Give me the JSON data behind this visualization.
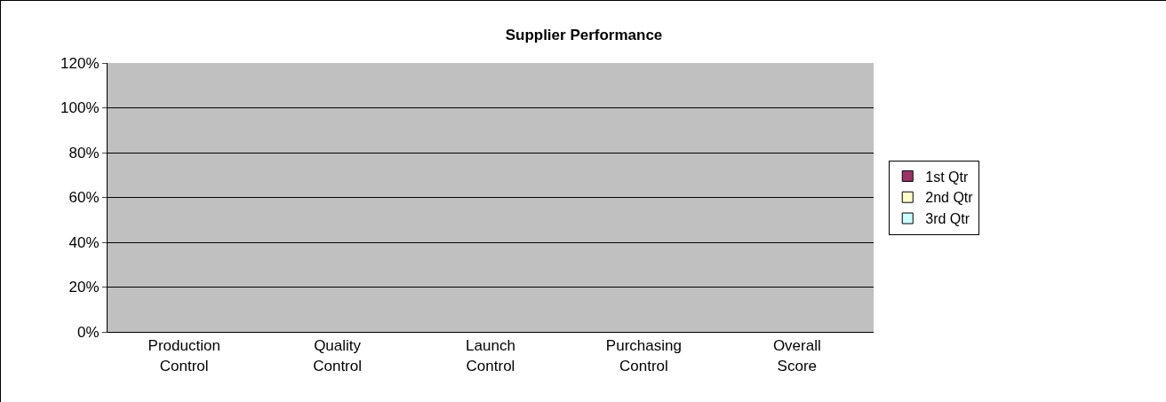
{
  "chart_data": {
    "type": "bar",
    "title": "Supplier Performance",
    "categories": [
      "Production Control",
      "Quality Control",
      "Launch Control",
      "Purchasing Control",
      "Overall Score"
    ],
    "series": [
      {
        "name": "1st Qtr",
        "color": "#993366",
        "values": [
          null,
          null,
          null,
          null,
          null
        ]
      },
      {
        "name": "2nd Qtr",
        "color": "#ffffcc",
        "values": [
          null,
          null,
          null,
          null,
          null
        ]
      },
      {
        "name": "3rd Qtr",
        "color": "#ccffff",
        "values": [
          null,
          null,
          null,
          null,
          null
        ]
      }
    ],
    "ylim": [
      0,
      120
    ],
    "yticks": [
      {
        "value": 0,
        "label": "0%"
      },
      {
        "value": 20,
        "label": "20%"
      },
      {
        "value": 40,
        "label": "40%"
      },
      {
        "value": 60,
        "label": "60%"
      },
      {
        "value": 80,
        "label": "80%"
      },
      {
        "value": 100,
        "label": "100%"
      },
      {
        "value": 120,
        "label": "120%"
      }
    ],
    "grid": "y",
    "legend": "right"
  }
}
